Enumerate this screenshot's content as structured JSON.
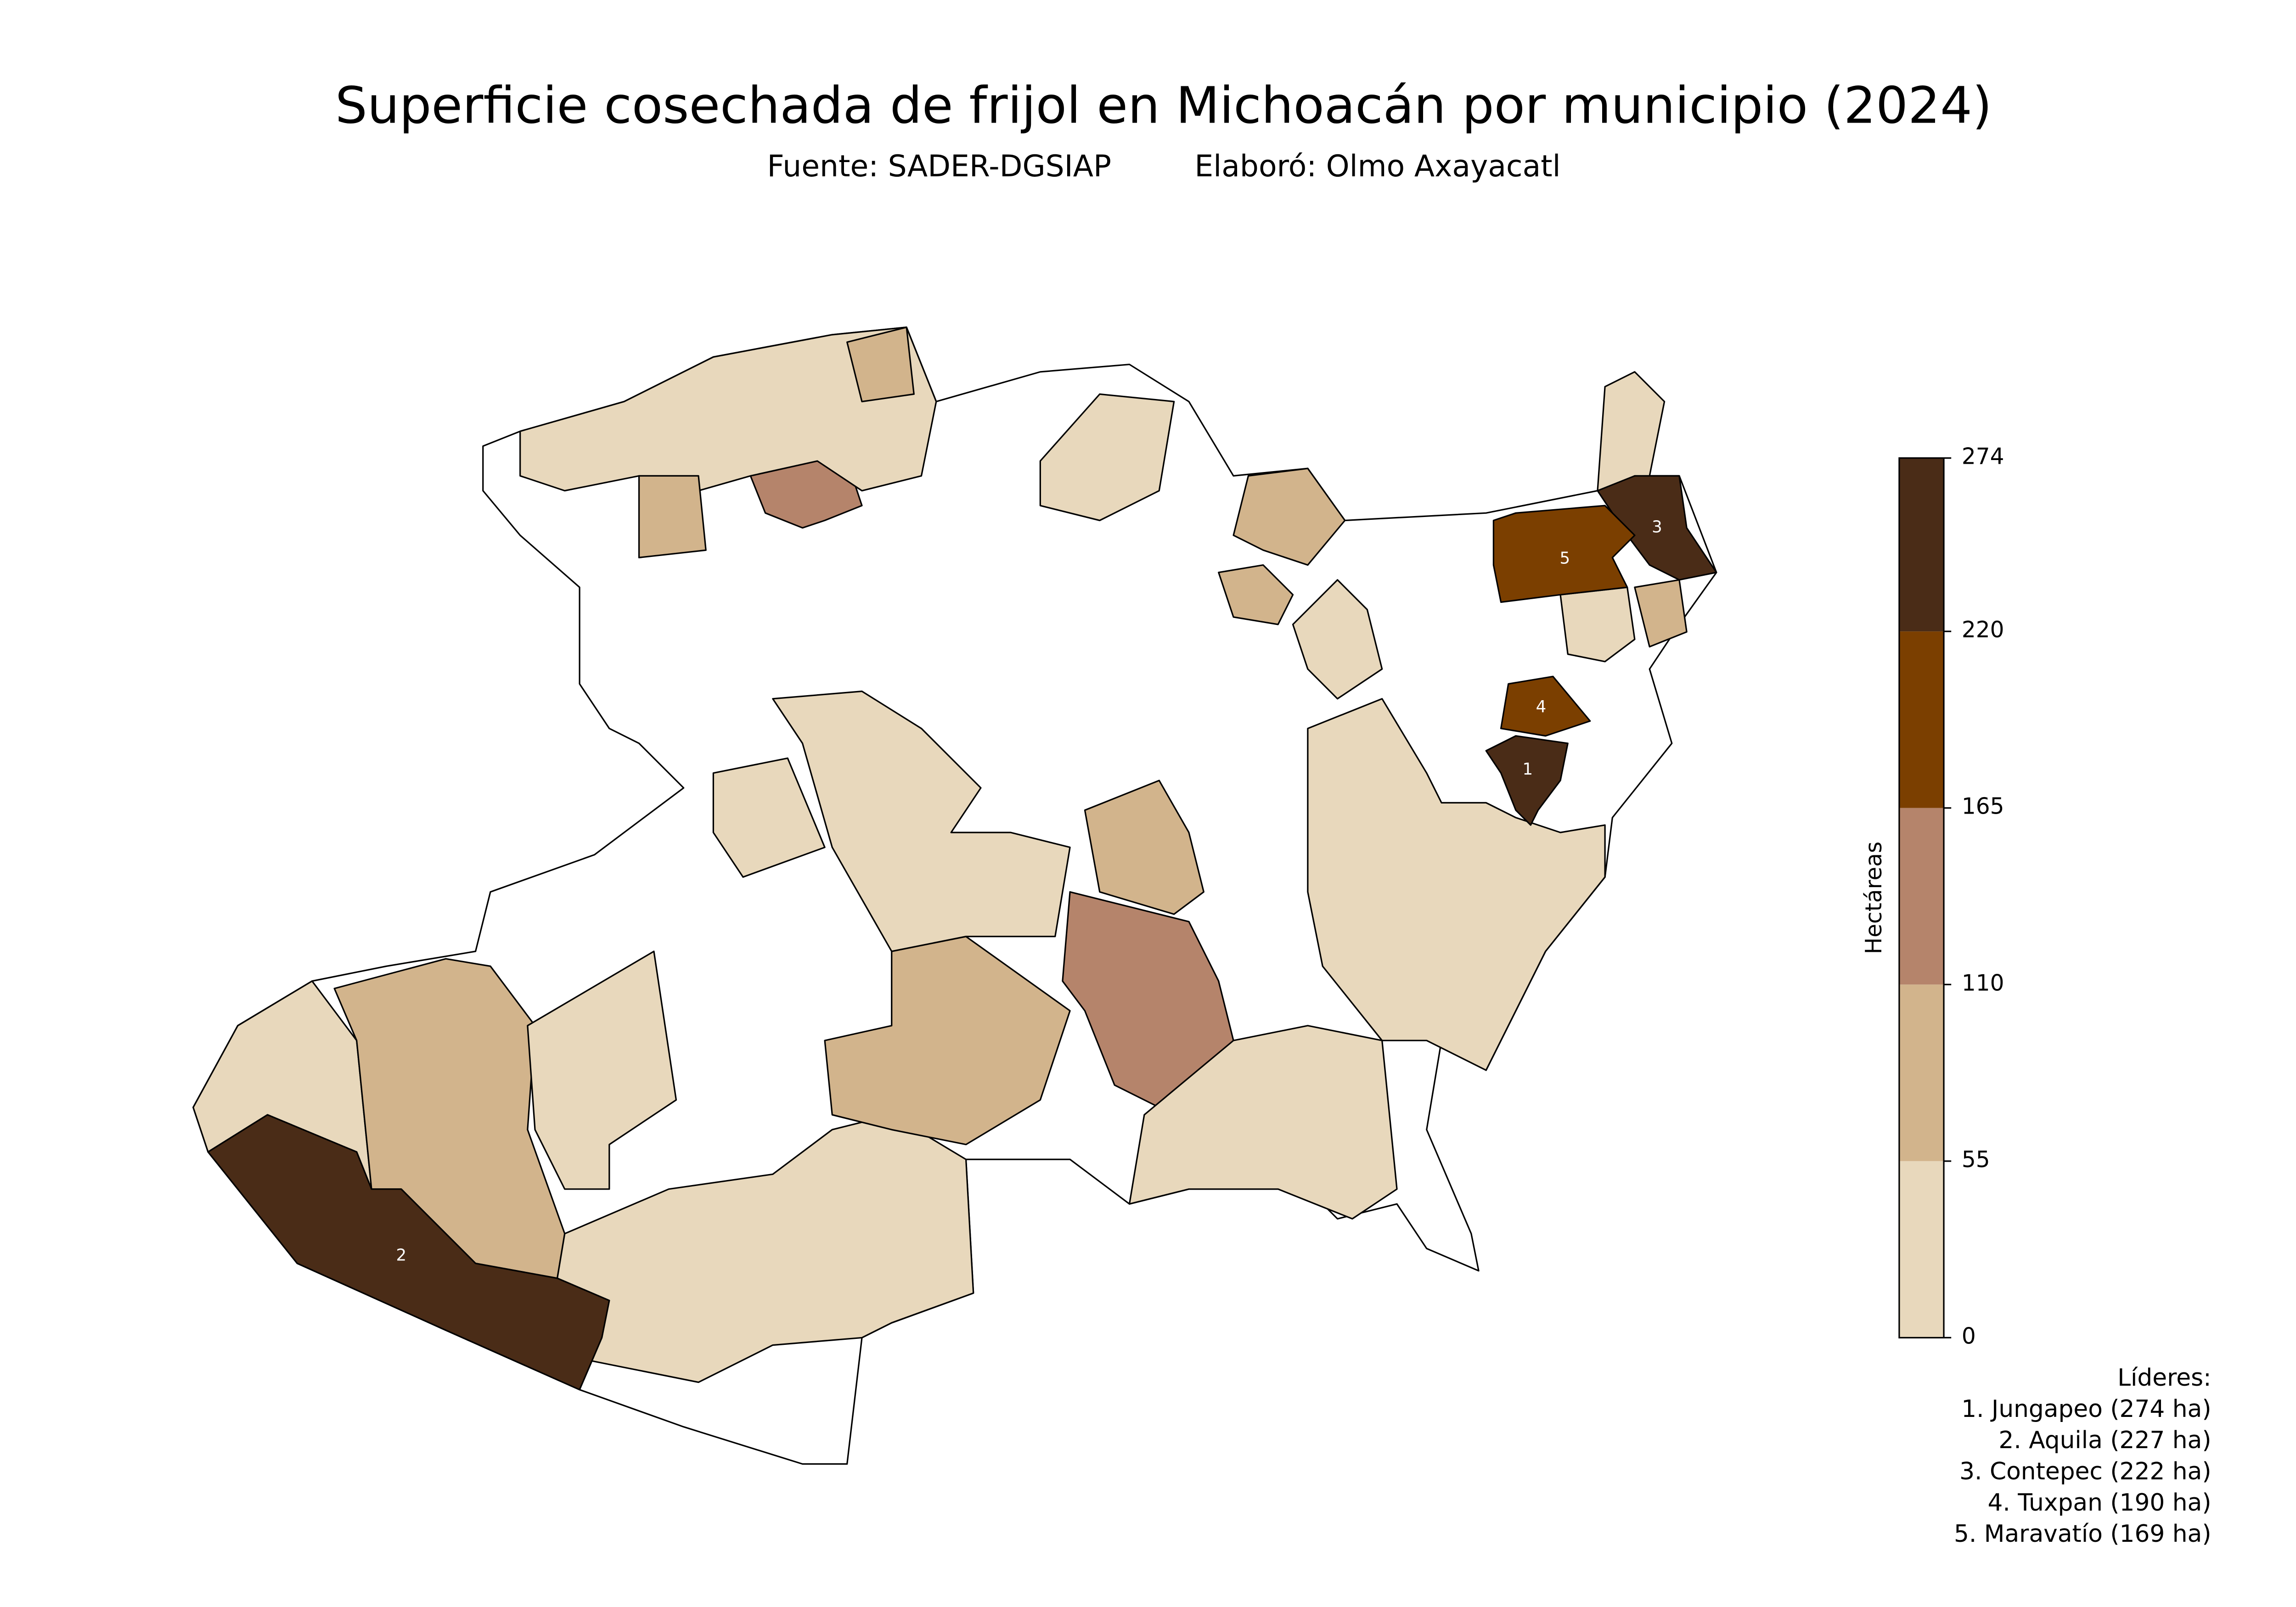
{
  "title": "Superficie cosechada de frijol en Michoacán por municipio (2024)",
  "subtitle": {
    "source": "Fuente: SADER-DGSIAP",
    "author": "Elaboró: Olmo Axayacatl"
  },
  "colorbar": {
    "label": "Hectáreas",
    "ticks": [
      0,
      55,
      110,
      165,
      220,
      274
    ],
    "colors": [
      "#e8d8bc",
      "#d2b48c",
      "#b5846b",
      "#7b3f00",
      "#4a2c17"
    ]
  },
  "leaders": {
    "title": "Líderes:",
    "items": [
      {
        "rank": 1,
        "name": "Jungapeo",
        "value": 274,
        "label": "1. Jungapeo (274 ha)"
      },
      {
        "rank": 2,
        "name": "Aquila",
        "value": 227,
        "label": "2. Aquila (227 ha)"
      },
      {
        "rank": 3,
        "name": "Contepec",
        "value": 222,
        "label": "3. Contepec (222 ha)"
      },
      {
        "rank": 4,
        "name": "Tuxpan",
        "value": 190,
        "label": "4. Tuxpan (190 ha)"
      },
      {
        "rank": 5,
        "name": "Maravatío",
        "value": 169,
        "label": "5. Maravatío (169 ha)"
      }
    ]
  }
}
